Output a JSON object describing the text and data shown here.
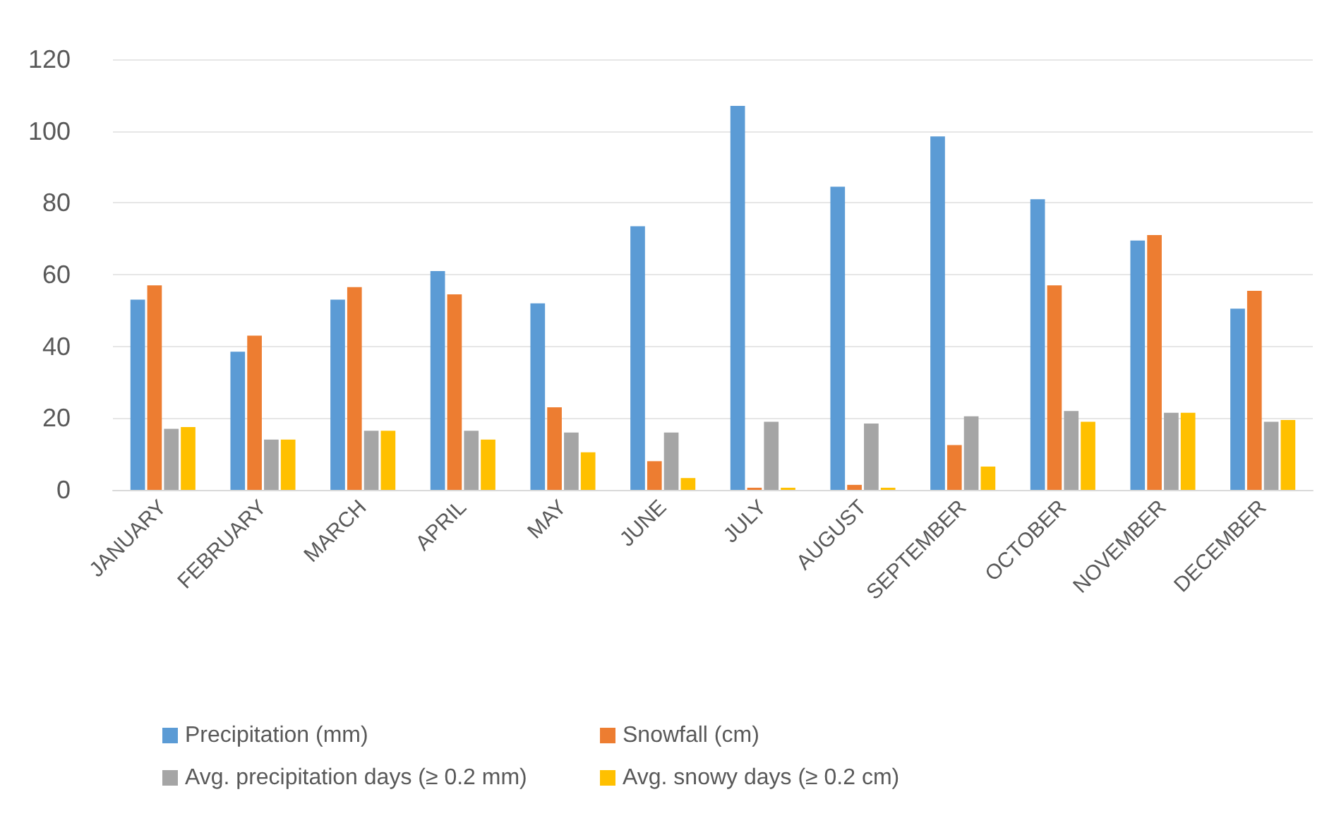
{
  "chart_data": {
    "type": "bar",
    "categories": [
      "JANUARY",
      "FEBRUARY",
      "MARCH",
      "APRIL",
      "MAY",
      "JUNE",
      "JULY",
      "AUGUST",
      "SEPTEMBER",
      "OCTOBER",
      "NOVEMBER",
      "DECEMBER"
    ],
    "series": [
      {
        "name": "Precipitation (mm)",
        "color": "#5b9bd5",
        "values": [
          53,
          38.5,
          53,
          61,
          52,
          73.5,
          107,
          84.5,
          98.5,
          81,
          69.5,
          50.5
        ]
      },
      {
        "name": "Snowfall (cm)",
        "color": "#ed7d31",
        "values": [
          57,
          43,
          56.5,
          54.5,
          23,
          8,
          0.6,
          1.4,
          12.5,
          57,
          71,
          55.5
        ]
      },
      {
        "name": "Avg. precipitation days (≥ 0.2 mm)",
        "color": "#a5a5a5",
        "values": [
          17,
          14,
          16.5,
          16.5,
          16,
          16,
          19,
          18.5,
          20.5,
          22,
          21.5,
          19
        ]
      },
      {
        "name": "Avg. snowy days (≥ 0.2 cm)",
        "color": "#ffc000",
        "values": [
          17.5,
          14,
          16.5,
          14,
          10.5,
          3.3,
          0.6,
          0.6,
          6.5,
          19,
          21.5,
          19.5
        ]
      }
    ],
    "ylim": [
      0,
      120
    ],
    "yticks": [
      0,
      20,
      40,
      60,
      80,
      100,
      120
    ],
    "grid": "y",
    "legend": "bottom"
  }
}
